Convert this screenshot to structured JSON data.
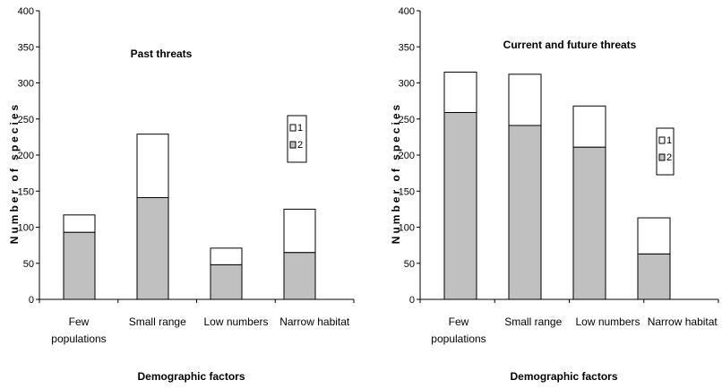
{
  "chart_data": [
    {
      "type": "bar",
      "stacked": true,
      "title": "Past threats",
      "xlabel": "Demographic factors",
      "ylabel": "Number of species",
      "ylim": [
        0,
        400
      ],
      "yticks": [
        0,
        50,
        100,
        150,
        200,
        250,
        300,
        350,
        400
      ],
      "categories": [
        "Few populations",
        "Small range",
        "Low numbers",
        "Narrow habitat"
      ],
      "category_lines": [
        [
          "Few",
          "populations"
        ],
        [
          "Small range"
        ],
        [
          "Low numbers"
        ],
        [
          "Narrow habitat"
        ]
      ],
      "series": [
        {
          "name": "2",
          "values": [
            93,
            141,
            48,
            65
          ],
          "color": "#c0c0c0"
        },
        {
          "name": "1",
          "values": [
            24,
            88,
            23,
            60
          ],
          "color": "#ffffff"
        }
      ],
      "legend": "right",
      "grid": false
    },
    {
      "type": "bar",
      "stacked": true,
      "title": "Current and future threats",
      "xlabel": "Demographic factors",
      "ylabel": "Number of species",
      "ylim": [
        0,
        400
      ],
      "yticks": [
        0,
        50,
        100,
        150,
        200,
        250,
        300,
        350,
        400
      ],
      "categories": [
        "Few populations",
        "Small range",
        "Low numbers",
        "Narrow habitat"
      ],
      "category_lines": [
        [
          "Few",
          "populations"
        ],
        [
          "Small range"
        ],
        [
          "Low numbers"
        ],
        [
          "Narrow habitat"
        ]
      ],
      "series": [
        {
          "name": "2",
          "values": [
            259,
            241,
            211,
            63
          ],
          "color": "#c0c0c0"
        },
        {
          "name": "1",
          "values": [
            56,
            71,
            57,
            50
          ],
          "color": "#ffffff"
        }
      ],
      "legend": "right",
      "grid": false
    }
  ]
}
